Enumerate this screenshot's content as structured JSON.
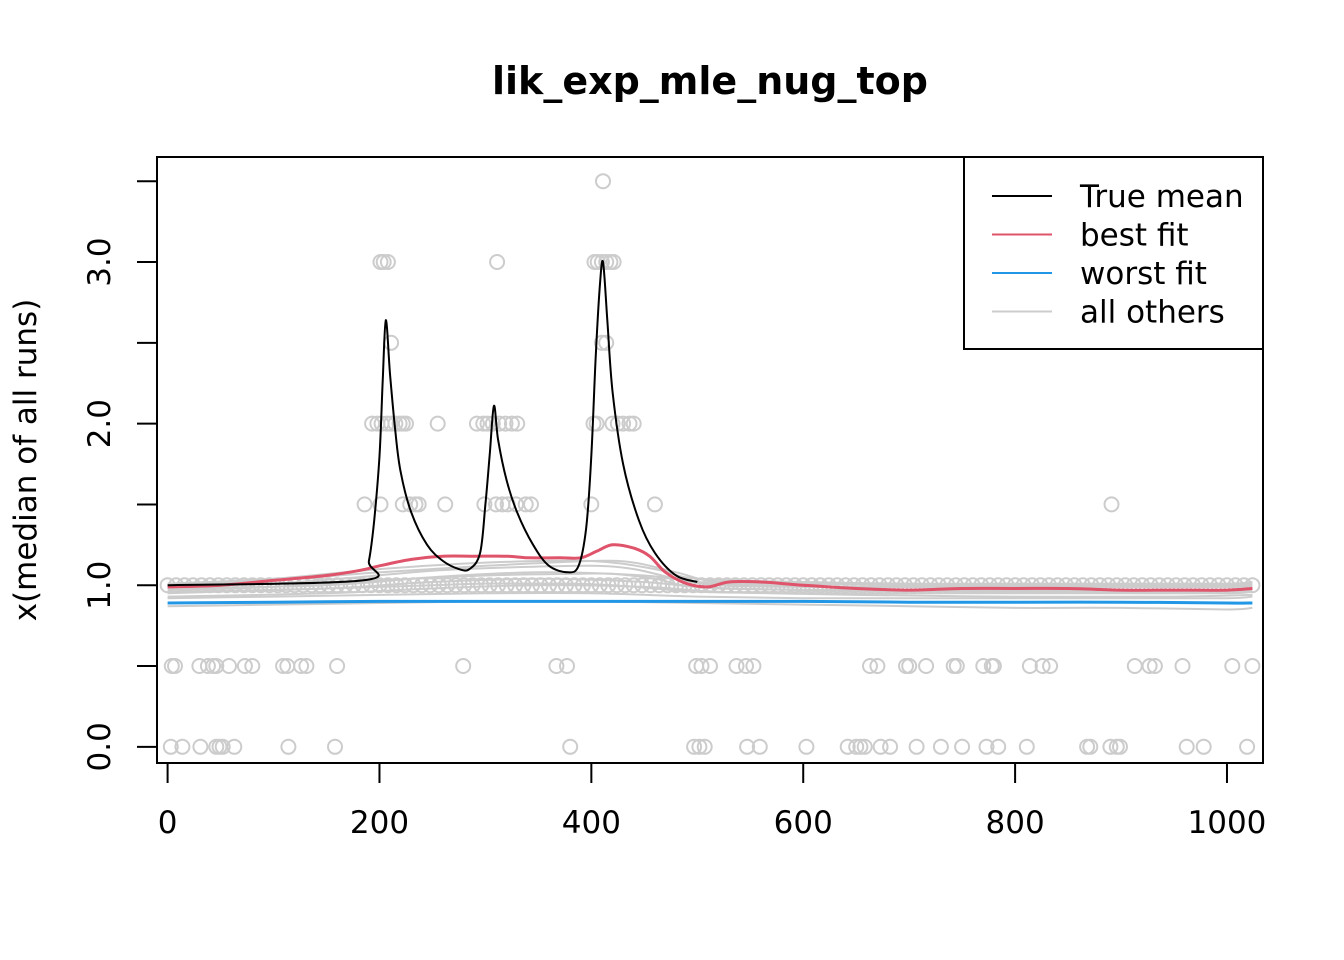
{
  "chart_data": {
    "type": "scatter",
    "title": "lik_exp_mle_nug_top",
    "xlabel": "",
    "ylabel": "x(median of all runs)",
    "xlim": [
      -10,
      1034
    ],
    "ylim": [
      -0.1,
      3.65
    ],
    "x_ticks": [
      0,
      200,
      400,
      600,
      800,
      1000
    ],
    "y_ticks": [
      0.0,
      0.5,
      1.0,
      1.5,
      2.0,
      2.5,
      3.0,
      3.5
    ],
    "y_tick_labels": [
      "0.0",
      "",
      "1.0",
      "",
      "2.0",
      "",
      "3.0",
      ""
    ],
    "grid": false,
    "legend": {
      "position": "top-right",
      "entries": [
        {
          "label": "True mean",
          "color": "#000000"
        },
        {
          "label": "best fit",
          "color": "#DF536B"
        },
        {
          "label": "worst fit",
          "color": "#2297E6"
        },
        {
          "label": "all others",
          "color": "#CCCCCC"
        }
      ]
    },
    "colors": {
      "points": "#CCCCCC",
      "true_mean": "#000000",
      "best": "#DF536B",
      "worst": "#2297E6",
      "others": "#CCCCCC"
    },
    "points": [
      {
        "y": 0,
        "x": [
          3,
          14,
          31,
          46,
          49,
          52,
          63,
          114,
          158,
          380,
          497,
          502,
          507,
          547,
          559,
          603,
          642,
          650,
          654,
          658,
          673,
          682,
          707,
          730,
          750,
          773,
          784,
          811,
          868,
          871,
          890,
          896,
          899,
          962,
          978,
          1019
        ]
      },
      {
        "y": 0.5,
        "x": [
          4,
          7,
          30,
          38,
          43,
          46,
          58,
          73,
          80,
          109,
          113,
          126,
          131,
          160,
          279,
          367,
          377,
          499,
          504,
          512,
          537,
          546,
          553,
          663,
          670,
          697,
          700,
          716,
          742,
          745,
          770,
          778,
          780,
          814,
          826,
          833,
          913,
          927,
          932,
          958,
          1005,
          1024
        ]
      },
      {
        "y": 1.0,
        "x": [
          0,
          8,
          16,
          24,
          32,
          40,
          48,
          56,
          64,
          72,
          80,
          88,
          96,
          104,
          112,
          120,
          128,
          136,
          144,
          152,
          160,
          168,
          176,
          184,
          192,
          200,
          208,
          216,
          224,
          232,
          240,
          248,
          256,
          264,
          272,
          280,
          288,
          296,
          304,
          312,
          320,
          328,
          336,
          344,
          352,
          360,
          368,
          376,
          384,
          392,
          400,
          408,
          416,
          424,
          432,
          440,
          448,
          456,
          464,
          472,
          480,
          488,
          496,
          504,
          512,
          520,
          528,
          536,
          544,
          552,
          560,
          568,
          576,
          584,
          592,
          600,
          608,
          616,
          624,
          632,
          640,
          648,
          656,
          664,
          672,
          680,
          688,
          696,
          704,
          712,
          720,
          728,
          736,
          744,
          752,
          760,
          768,
          776,
          784,
          792,
          800,
          808,
          816,
          824,
          832,
          840,
          848,
          856,
          864,
          872,
          880,
          888,
          896,
          904,
          912,
          920,
          928,
          936,
          944,
          952,
          960,
          968,
          976,
          984,
          992,
          1000,
          1008,
          1016,
          1024
        ]
      },
      {
        "y": 1.5,
        "x": [
          186,
          201,
          222,
          229,
          234,
          237,
          262,
          299,
          310,
          316,
          321,
          329,
          338,
          343,
          400,
          460,
          891
        ]
      },
      {
        "y": 2.0,
        "x": [
          193,
          198,
          202,
          207,
          211,
          215,
          219,
          222,
          225,
          255,
          292,
          298,
          302,
          307,
          313,
          319,
          325,
          330,
          402,
          405,
          420,
          425,
          430,
          436,
          440
        ]
      },
      {
        "y": 2.5,
        "x": [
          211,
          410,
          414
        ]
      },
      {
        "y": 3.0,
        "x": [
          201,
          204,
          208,
          311,
          403,
          406,
          410,
          414,
          418,
          421
        ]
      },
      {
        "y": 3.5,
        "x": [
          411
        ]
      }
    ],
    "series": [
      {
        "name": "True mean",
        "x": [
          0,
          184,
          190,
          195,
          200,
          203,
          206,
          210,
          215,
          220,
          230,
          245,
          260,
          275,
          285,
          295,
          300,
          304,
          308,
          312,
          320,
          330,
          345,
          360,
          378,
          388,
          395,
          400,
          404,
          408,
          411,
          415,
          420,
          430,
          445,
          460,
          480,
          500
        ],
        "y": [
          1.0,
          1.03,
          1.15,
          1.4,
          1.8,
          2.25,
          2.64,
          2.3,
          1.95,
          1.7,
          1.45,
          1.25,
          1.15,
          1.1,
          1.1,
          1.2,
          1.5,
          1.8,
          2.11,
          1.9,
          1.65,
          1.45,
          1.25,
          1.12,
          1.08,
          1.12,
          1.35,
          1.8,
          2.4,
          2.85,
          3.0,
          2.65,
          2.2,
          1.75,
          1.4,
          1.2,
          1.06,
          1.02
        ]
      },
      {
        "name": "best fit",
        "x": [
          0,
          50,
          100,
          150,
          180,
          200,
          230,
          260,
          290,
          320,
          340,
          370,
          390,
          405,
          420,
          440,
          455,
          470,
          490,
          510,
          530,
          560,
          600,
          650,
          700,
          750,
          800,
          850,
          900,
          950,
          1000,
          1024
        ],
        "y": [
          0.99,
          1.0,
          1.03,
          1.06,
          1.09,
          1.12,
          1.16,
          1.18,
          1.18,
          1.18,
          1.17,
          1.17,
          1.17,
          1.21,
          1.25,
          1.23,
          1.18,
          1.08,
          1.01,
          0.99,
          1.02,
          1.02,
          1.0,
          0.98,
          0.97,
          0.98,
          0.98,
          0.98,
          0.97,
          0.97,
          0.97,
          0.98
        ]
      },
      {
        "name": "worst fit",
        "x": [
          0,
          100,
          200,
          300,
          400,
          500,
          600,
          700,
          800,
          900,
          1000,
          1024
        ],
        "y": [
          0.89,
          0.895,
          0.9,
          0.9,
          0.9,
          0.9,
          0.9,
          0.895,
          0.895,
          0.895,
          0.89,
          0.89
        ]
      }
    ],
    "others": [
      {
        "x": [
          0,
          100,
          200,
          300,
          400,
          500,
          600,
          700,
          800,
          900,
          1000,
          1024
        ],
        "y": [
          0.87,
          0.88,
          0.89,
          0.9,
          0.9,
          0.89,
          0.88,
          0.87,
          0.86,
          0.86,
          0.85,
          0.86
        ]
      },
      {
        "x": [
          0,
          100,
          200,
          300,
          400,
          500,
          600,
          700,
          800,
          900,
          1000,
          1024
        ],
        "y": [
          0.92,
          0.93,
          0.94,
          0.95,
          0.95,
          0.93,
          0.92,
          0.92,
          0.92,
          0.92,
          0.92,
          0.93
        ]
      },
      {
        "x": [
          0,
          100,
          200,
          250,
          300,
          380,
          420,
          460,
          500,
          600,
          700,
          800,
          900,
          1000,
          1024
        ],
        "y": [
          0.95,
          0.97,
          0.99,
          1.0,
          1.01,
          1.01,
          1.0,
          0.98,
          0.96,
          0.95,
          0.95,
          0.95,
          0.95,
          0.95,
          0.96
        ]
      },
      {
        "x": [
          0,
          100,
          200,
          300,
          380,
          420,
          460,
          500,
          600,
          700,
          800,
          900,
          1000,
          1024
        ],
        "y": [
          0.97,
          0.99,
          1.03,
          1.06,
          1.07,
          1.07,
          1.04,
          0.99,
          0.97,
          0.97,
          0.97,
          0.97,
          0.97,
          0.98
        ]
      },
      {
        "x": [
          0,
          100,
          180,
          250,
          320,
          400,
          440,
          480,
          520,
          600,
          700,
          800,
          900,
          1000,
          1024
        ],
        "y": [
          0.99,
          1.01,
          1.05,
          1.09,
          1.11,
          1.12,
          1.1,
          1.04,
          1.0,
          0.99,
          0.99,
          0.99,
          0.99,
          0.99,
          1.0
        ]
      },
      {
        "x": [
          0,
          100,
          200,
          300,
          400,
          440,
          480,
          520,
          600,
          700,
          800,
          900,
          1000,
          1024
        ],
        "y": [
          1.0,
          1.03,
          1.08,
          1.12,
          1.15,
          1.14,
          1.08,
          1.02,
          1.01,
          1.0,
          1.0,
          1.0,
          1.0,
          1.01
        ]
      },
      {
        "x": [
          0,
          100,
          200,
          300,
          400,
          460,
          500,
          600,
          700,
          800,
          900,
          1000,
          1024
        ],
        "y": [
          1.01,
          1.04,
          1.1,
          1.14,
          1.15,
          1.1,
          1.04,
          1.02,
          1.01,
          1.01,
          1.01,
          1.01,
          1.02
        ]
      },
      {
        "x": [
          0,
          150,
          250,
          350,
          450,
          520,
          650,
          800,
          950,
          1024
        ],
        "y": [
          0.96,
          0.98,
          1.02,
          1.04,
          1.02,
          0.98,
          0.97,
          0.96,
          0.96,
          0.97
        ]
      },
      {
        "x": [
          0,
          150,
          250,
          350,
          450,
          520,
          650,
          800,
          950,
          1024
        ],
        "y": [
          0.98,
          1.0,
          1.05,
          1.08,
          1.06,
          1.01,
          0.99,
          0.99,
          0.99,
          0.99
        ]
      },
      {
        "x": [
          0,
          150,
          250,
          350,
          450,
          520,
          650,
          800,
          950,
          1024
        ],
        "y": [
          0.93,
          0.95,
          0.98,
          1.0,
          0.99,
          0.96,
          0.94,
          0.93,
          0.93,
          0.94
        ]
      }
    ]
  }
}
